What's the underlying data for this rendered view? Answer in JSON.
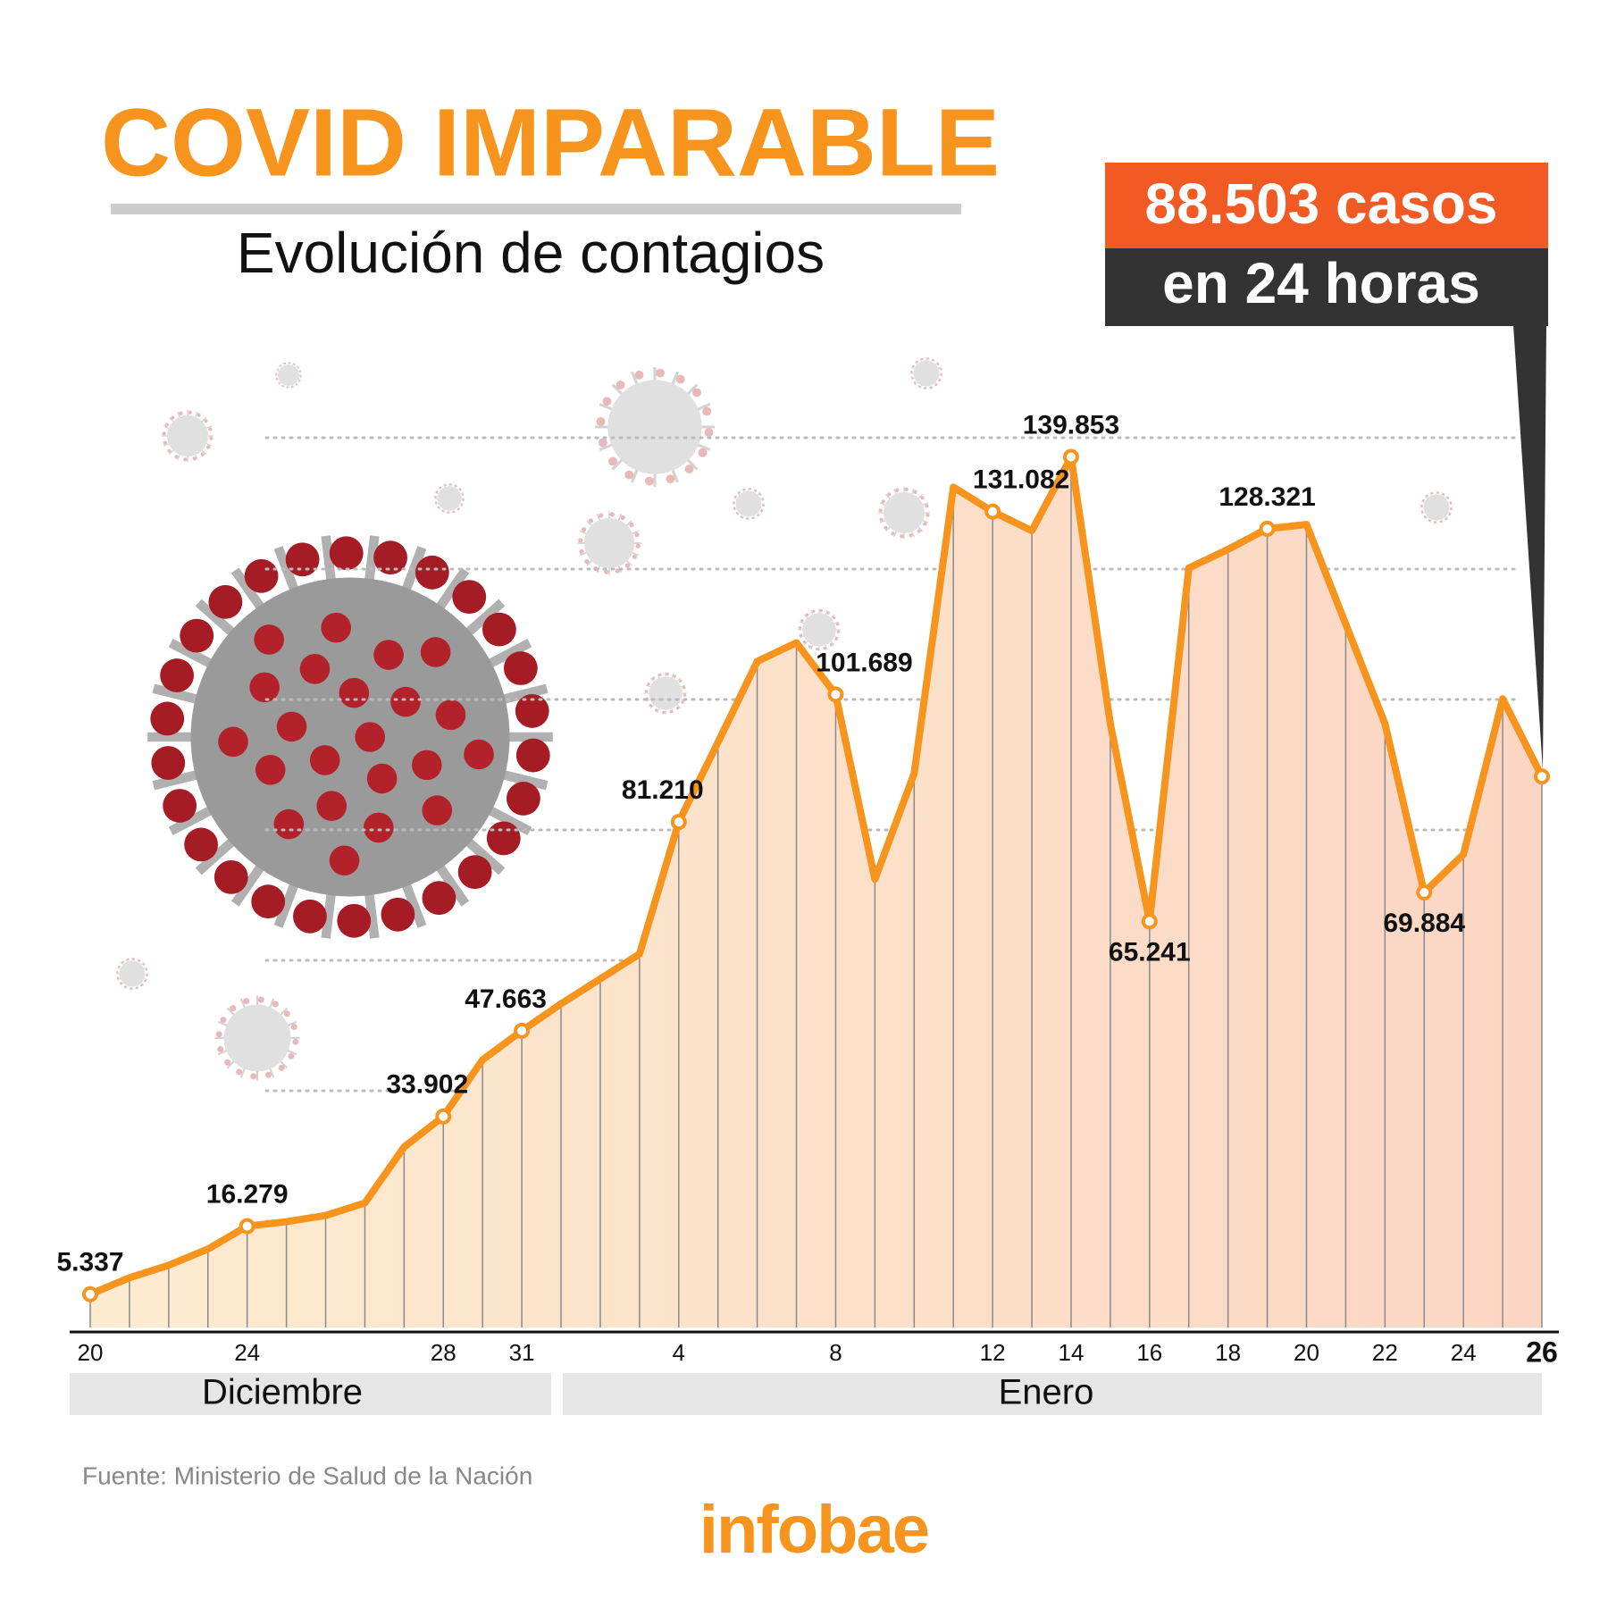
{
  "chart_data": {
    "type": "line",
    "title": "COVID IMPARABLE",
    "subtitle": "Evolución de contagios",
    "callout": {
      "line1": "88.503 casos",
      "line2": "en 24 horas"
    },
    "months": [
      "Diciembre",
      "Enero"
    ],
    "source": "Fuente: Ministerio de Salud de la Nación",
    "logo": "infobae",
    "color": "#f7941d",
    "ylim": [
      0,
      157000
    ],
    "categories": [
      "20",
      null,
      null,
      null,
      "24",
      null,
      null,
      null,
      null,
      "28",
      null,
      "31",
      null,
      null,
      null,
      "4",
      null,
      null,
      null,
      "8",
      null,
      null,
      null,
      "12",
      null,
      "14",
      null,
      "16",
      null,
      "18",
      null,
      "20",
      null,
      "22",
      null,
      "24",
      null,
      "26"
    ],
    "values": [
      5337,
      8000,
      10000,
      12600,
      16279,
      17000,
      18000,
      20000,
      29000,
      33902,
      43000,
      47663,
      52000,
      56000,
      60000,
      81210,
      94000,
      107000,
      110000,
      101689,
      72000,
      89000,
      135000,
      131082,
      128000,
      139853,
      97000,
      65241,
      122000,
      125000,
      128321,
      129000,
      113000,
      97000,
      69884,
      76000,
      101000,
      88503
    ],
    "value_labels": [
      "5.337",
      null,
      null,
      null,
      "16.279",
      null,
      null,
      null,
      null,
      "33.902",
      null,
      "47.663",
      null,
      null,
      null,
      "81.210",
      null,
      null,
      null,
      "101.689",
      null,
      null,
      null,
      "131.082",
      null,
      "139.853",
      null,
      "65.241",
      null,
      null,
      "128.321",
      null,
      null,
      null,
      "69.884",
      null,
      null,
      "88.503"
    ]
  }
}
